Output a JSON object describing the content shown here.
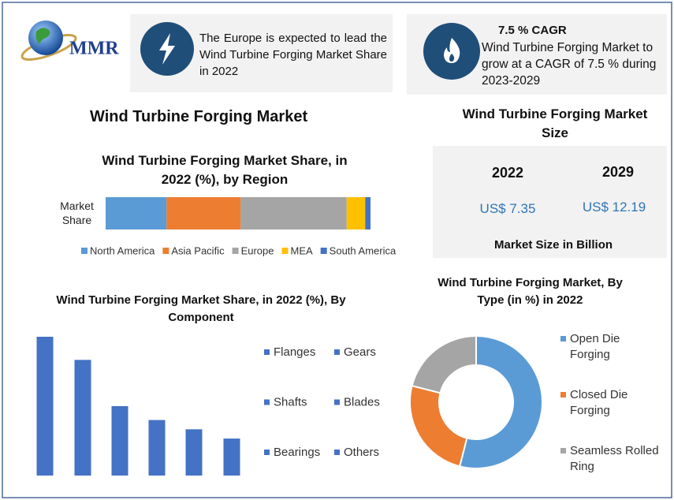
{
  "header": {
    "logo": "MMR",
    "highlight_text": "The Europe is expected to lead the Wind Turbine Forging Market Share in 2022",
    "cagr_title": "7.5 % CAGR",
    "cagr_text": "Wind Turbine Forging Market to grow at a CAGR of 7.5 % during 2023-2029"
  },
  "main_title": "Wind Turbine Forging Market",
  "market_size": {
    "title": "Wind Turbine Forging Market Size",
    "years": [
      "2022",
      "2029"
    ],
    "values": [
      "US$ 7.35",
      "US$ 12.19"
    ],
    "footer": "Market Size in Billion"
  },
  "chart_data": [
    {
      "type": "stacked-bar",
      "title": "Wind Turbine Forging Market Share, in 2022 (%), by Region",
      "categories": [
        "Market Share"
      ],
      "xlim": [
        0,
        100
      ],
      "series": [
        {
          "name": "North America",
          "color": "#5b9bd5",
          "values": [
            23
          ]
        },
        {
          "name": "Asia Pacific",
          "color": "#ed7d31",
          "values": [
            28
          ]
        },
        {
          "name": "Europe",
          "color": "#a5a5a5",
          "values": [
            40
          ]
        },
        {
          "name": "MEA",
          "color": "#ffc000",
          "values": [
            7
          ]
        },
        {
          "name": "South America",
          "color": "#4472c4",
          "values": [
            2
          ]
        }
      ]
    },
    {
      "type": "bar",
      "title": "Wind Turbine Forging Market Share, in 2022 (%), By Component",
      "categories": [
        "Flanges",
        "Gears",
        "Shafts",
        "Blades",
        "Bearings",
        "Others"
      ],
      "values": [
        30,
        25,
        15,
        12,
        10,
        8
      ],
      "color": "#4472c4",
      "ylim": [
        0,
        30
      ]
    },
    {
      "type": "donut",
      "title": "Wind Turbine Forging Market, By Type (in %) in 2022",
      "categories": [
        "Open Die Forging",
        "Closed Die Forging",
        "Seamless Rolled Ring"
      ],
      "values": [
        54,
        25,
        21
      ],
      "colors": [
        "#5b9bd5",
        "#ed7d31",
        "#a5a5a5"
      ]
    }
  ]
}
